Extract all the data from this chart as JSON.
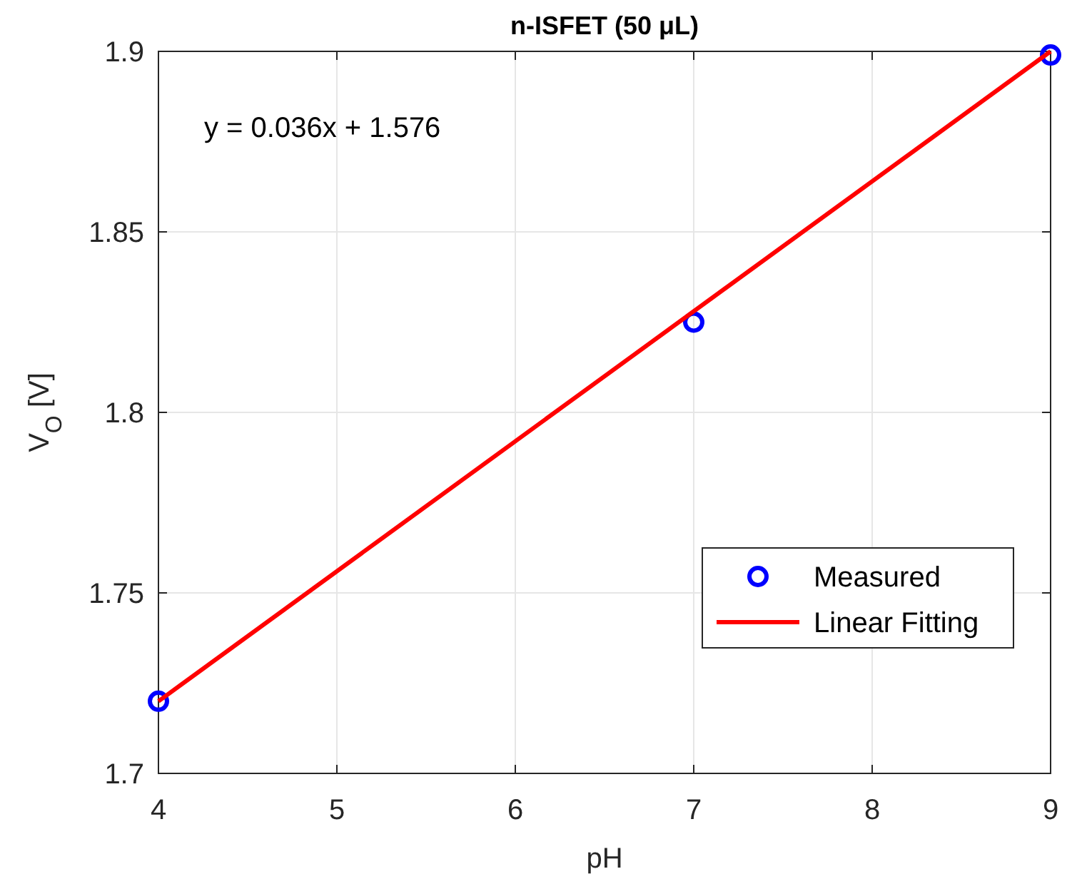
{
  "chart_data": {
    "type": "scatter",
    "title": "n-ISFET (50 μL)",
    "xlabel": "pH",
    "ylabel": "V$_{O}$ [V]",
    "annotations": [
      "y = 0.036x + 1.576"
    ],
    "x": [
      4,
      7,
      9
    ],
    "series": [
      {
        "name": "Measured",
        "color": "#0000ff",
        "values": [
          1.72,
          1.825,
          1.899
        ],
        "marker": "circle"
      },
      {
        "name": "Linear Fitting",
        "type": "line",
        "color": "#ff0000",
        "x": [
          4,
          9
        ],
        "values": [
          1.72,
          1.9
        ],
        "marker": "none",
        "line_style": "solid"
      }
    ],
    "xlim": [
      4,
      9
    ],
    "xticks": [
      4,
      5,
      6,
      7,
      8,
      9
    ],
    "ylim": [
      1.7,
      1.9
    ],
    "yticks": [
      1.7,
      1.75,
      1.8,
      1.85,
      1.9
    ],
    "grid": true,
    "legend": "bottom right"
  }
}
